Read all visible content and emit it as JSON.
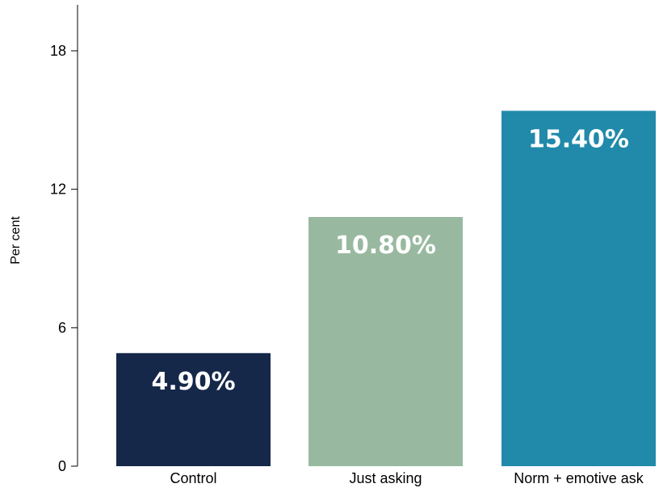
{
  "chart_data": {
    "type": "bar",
    "title": "",
    "xlabel": "",
    "ylabel": "Per cent",
    "ylim": [
      0,
      20
    ],
    "yticks": [
      0,
      6,
      12,
      18
    ],
    "yticklabels": [
      "0",
      "6",
      "12",
      "18"
    ],
    "grid": false,
    "categories": [
      "Control",
      "Just asking",
      "Norm + emotive ask"
    ],
    "values": [
      4.9,
      10.8,
      15.4
    ],
    "data_labels": [
      "4.90%",
      "10.80%",
      "15.40%"
    ],
    "colors": [
      "#16284a",
      "#98b9a0",
      "#218aaa"
    ]
  }
}
